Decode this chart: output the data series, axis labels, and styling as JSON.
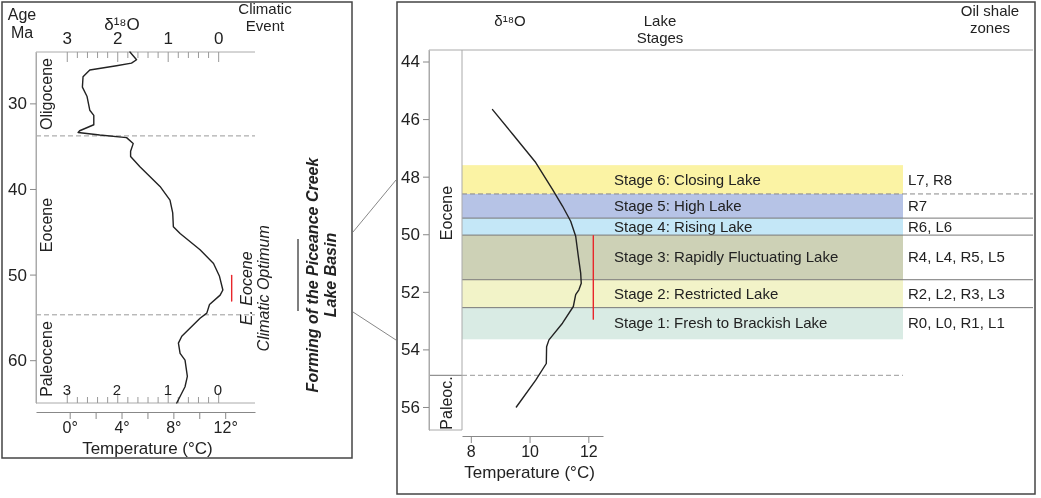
{
  "chart_data": [
    {
      "type": "line",
      "ylabel": "Age Ma",
      "xlabel": "Temperature (°C)",
      "x2label": "δ¹⁸O",
      "annotations": [
        "Climatic Event",
        "3",
        "2",
        "1",
        "0",
        "Oligocene",
        "Eocene",
        "Paleocene",
        "Forming of the Piceance Creek Lake Basin",
        {
          "text": "E. Eocene Climatic Optimum",
          "x": 12.5,
          "y": 51.6
        }
      ],
      "xlim": [
        -2.6,
        14.3
      ],
      "xticks": [
        {
          "value": 0,
          "label": "0°"
        },
        {
          "value": 2,
          "label": null
        },
        {
          "value": 4,
          "label": "4°"
        },
        {
          "value": 6,
          "label": null
        },
        {
          "value": 8,
          "label": "8°"
        },
        {
          "value": 10,
          "label": null
        },
        {
          "value": 12,
          "label": "12°"
        }
      ],
      "x2lim": [
        3.61,
        -0.73
      ],
      "x2ticks": [
        3,
        {
          "value": 2.8,
          "label": null
        },
        {
          "value": 2.6,
          "label": null
        },
        {
          "value": 2.4,
          "label": null
        },
        {
          "value": 2.2,
          "label": null
        },
        2,
        {
          "value": 1.8,
          "label": null
        },
        {
          "value": 1.6,
          "label": null
        },
        {
          "value": 1.4,
          "label": null
        },
        {
          "value": 1.2,
          "label": null
        },
        1,
        {
          "value": 0.8,
          "label": null
        },
        {
          "value": 0.6,
          "label": null
        },
        {
          "value": 0.4,
          "label": null
        },
        {
          "value": 0.2,
          "label": null
        },
        0
      ],
      "ylim": [
        65,
        24
      ],
      "yticks": [
        30,
        40,
        50,
        60
      ],
      "series": [
        {
          "color": "#222222",
          "x": [
            4.65,
            5.16,
            4.77,
            3.61,
            1.55,
            1.03,
            0.98,
            1.34,
            1.55,
            1.86,
            1.86,
            0.77,
            0.65,
            2.32,
            4.39,
            4.9,
            4.7,
            4.7,
            5.42,
            6.97,
            7.74,
            7.95,
            8.0,
            8.52,
            10.06,
            11.1,
            11.56,
            11.82,
            11.61,
            10.79,
            10.58,
            10.06,
            8.65,
            8.39,
            8.52,
            8.9,
            9.08,
            8.9,
            8.26
          ],
          "values": [
            24.0,
            24.9,
            25.3,
            25.6,
            26.1,
            26.9,
            28.1,
            29.2,
            30.8,
            31.4,
            32.5,
            33.2,
            33.4,
            33.7,
            34.0,
            34.7,
            35.6,
            36.2,
            37.4,
            39.7,
            41.3,
            42.8,
            44.4,
            45.2,
            47.1,
            48.7,
            50.2,
            51.8,
            52.4,
            53.5,
            54.5,
            55.1,
            57.2,
            58.0,
            59.2,
            60.0,
            61.9,
            63.1,
            65.0
          ]
        },
        {
          "color": "#e8262b",
          "x": [
            12.5,
            12.5
          ],
          "values": [
            50.1,
            53.1
          ]
        }
      ],
      "ref_lines": [
        {
          "axis": "y",
          "value": 33.8,
          "color": "#999999",
          "line_style": "dashed"
        },
        {
          "axis": "y",
          "value": 54.7,
          "color": "#999999",
          "line_style": "dashed"
        }
      ]
    },
    {
      "type": "line",
      "xlabel": "Temperature (°C)",
      "annotations": [
        "δ¹⁸O",
        "Lake Stages",
        "Oil shale zones",
        "Eocene",
        "Paleoc.",
        "L7, R8",
        "R7",
        "R6, L6",
        "R4, L4, R5, L5",
        "R2, L2, R3, L3",
        "R0, L0, R1, L1"
      ],
      "xlim": [
        7.7,
        12.5
      ],
      "xticks": [
        8,
        10,
        12
      ],
      "ylim": [
        56.8,
        43.6
      ],
      "yticks": [
        44,
        46,
        48,
        50,
        52,
        54,
        56
      ],
      "series": [
        {
          "color": "#222222",
          "x": [
            8.74,
            9.42,
            10.21,
            10.78,
            11.12,
            11.4,
            11.57,
            11.66,
            11.74,
            11.76,
            11.68,
            11.57,
            11.49,
            11.12,
            10.66,
            10.58,
            10.57,
            10.21,
            9.55
          ],
          "values": [
            45.67,
            46.52,
            47.51,
            48.44,
            49.02,
            49.55,
            50.07,
            50.77,
            51.35,
            51.7,
            51.93,
            52.1,
            52.51,
            53.09,
            53.67,
            53.91,
            54.49,
            55.07,
            56.0
          ]
        },
        {
          "color": "#e8262b",
          "x": [
            12.17,
            12.17
          ],
          "values": [
            50.05,
            52.95
          ]
        }
      ],
      "bands": [
        {
          "axis": "y",
          "from": 47.6,
          "to": 48.6,
          "label": "Stage 6: Closing Lake",
          "color": "#fbf3a4"
        },
        {
          "axis": "y",
          "from": 48.6,
          "to": 49.44,
          "label": "Stage 5: High Lake",
          "color": "#b6c3e6"
        },
        {
          "axis": "y",
          "from": 49.44,
          "to": 50.03,
          "label": "Stage 4: Rising Lake",
          "color": "#c4e7f7"
        },
        {
          "axis": "y",
          "from": 50.03,
          "to": 51.58,
          "label": "Stage 3: Rapidly Fluctuating Lake",
          "color": "#cdd1b6"
        },
        {
          "axis": "y",
          "from": 51.58,
          "to": 52.55,
          "label": "Stage 2: Restricted Lake",
          "color": "#f2f3c8"
        },
        {
          "axis": "y",
          "from": 52.55,
          "to": 53.65,
          "label": "Stage 1: Fresh to Brackish Lake",
          "color": "#d9ebe4"
        }
      ],
      "ref_lines": [
        {
          "axis": "y",
          "value": 48.6,
          "color": "#888888",
          "line_style": "dashed"
        },
        {
          "axis": "y",
          "value": 49.44,
          "color": "#777777"
        },
        {
          "axis": "y",
          "value": 50.03,
          "color": "#777777"
        },
        {
          "axis": "y",
          "value": 51.58,
          "color": "#777777"
        },
        {
          "axis": "y",
          "value": 52.55,
          "color": "#777777"
        },
        {
          "axis": "y",
          "value": 54.9,
          "color": "#999999",
          "line_style": "dashed"
        }
      ]
    }
  ]
}
